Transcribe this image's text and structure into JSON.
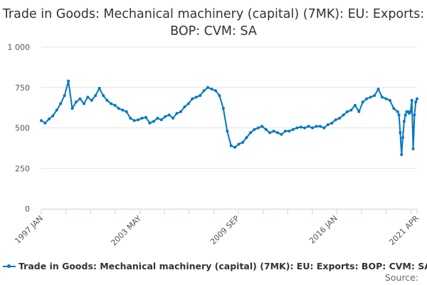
{
  "chart_data": {
    "type": "line",
    "title": "Trade in Goods: Mechanical machinery (capital) (7MK): EU: Exports: BOP: CVM: SA",
    "xlabel": "",
    "ylabel": "",
    "ylim": [
      0,
      1000
    ],
    "yticks": [
      0,
      250,
      500,
      750,
      1000
    ],
    "ytick_labels": [
      "0",
      "250",
      "500",
      "750",
      "1 000"
    ],
    "xtick_labels": [
      "1997 JAN",
      "2003 MAY",
      "2009 SEP",
      "2016 JAN",
      "2021 APR"
    ],
    "xtick_dates": [
      "1997-01",
      "2003-05",
      "2009-09",
      "2016-01",
      "2021-04"
    ],
    "grid": true,
    "legend_placement": "bottom",
    "color": "#0077c2",
    "series": [
      {
        "name": "Trade in Goods: Mechanical machinery (capital) (7MK): EU: Exports: BOP: CVM: SA",
        "x": [
          "1997-01",
          "1997-04",
          "1997-07",
          "1997-10",
          "1998-01",
          "1998-04",
          "1998-07",
          "1998-10",
          "1999-01",
          "1999-04",
          "1999-07",
          "1999-10",
          "2000-01",
          "2000-04",
          "2000-07",
          "2000-10",
          "2001-01",
          "2001-04",
          "2001-07",
          "2001-10",
          "2002-01",
          "2002-04",
          "2002-07",
          "2002-10",
          "2003-01",
          "2003-04",
          "2003-07",
          "2003-10",
          "2004-01",
          "2004-04",
          "2004-07",
          "2004-10",
          "2005-01",
          "2005-04",
          "2005-07",
          "2005-10",
          "2006-01",
          "2006-04",
          "2006-07",
          "2006-10",
          "2007-01",
          "2007-04",
          "2007-07",
          "2007-10",
          "2008-01",
          "2008-04",
          "2008-07",
          "2008-10",
          "2009-01",
          "2009-04",
          "2009-07",
          "2009-10",
          "2010-01",
          "2010-04",
          "2010-07",
          "2010-10",
          "2011-01",
          "2011-04",
          "2011-07",
          "2011-10",
          "2012-01",
          "2012-04",
          "2012-07",
          "2012-10",
          "2013-01",
          "2013-04",
          "2013-07",
          "2013-10",
          "2014-01",
          "2014-04",
          "2014-07",
          "2014-10",
          "2015-01",
          "2015-04",
          "2015-07",
          "2015-10",
          "2016-01",
          "2016-04",
          "2016-07",
          "2016-10",
          "2017-01",
          "2017-04",
          "2017-07",
          "2017-10",
          "2018-01",
          "2018-04",
          "2018-07",
          "2018-10",
          "2019-01",
          "2019-04",
          "2019-07",
          "2019-10",
          "2020-01",
          "2020-02",
          "2020-03",
          "2020-04",
          "2020-05",
          "2020-06",
          "2020-07",
          "2020-08",
          "2020-09",
          "2020-10",
          "2020-11",
          "2020-12",
          "2021-01",
          "2021-02",
          "2021-03",
          "2021-04"
        ],
        "values": [
          545,
          530,
          555,
          575,
          610,
          650,
          700,
          790,
          620,
          660,
          680,
          650,
          690,
          670,
          700,
          745,
          700,
          670,
          650,
          640,
          620,
          610,
          600,
          560,
          545,
          550,
          560,
          565,
          530,
          540,
          560,
          550,
          570,
          580,
          560,
          590,
          600,
          630,
          650,
          680,
          690,
          700,
          730,
          750,
          740,
          730,
          700,
          620,
          480,
          390,
          380,
          400,
          410,
          440,
          470,
          490,
          500,
          510,
          490,
          470,
          480,
          470,
          460,
          480,
          480,
          490,
          500,
          505,
          500,
          510,
          500,
          510,
          510,
          500,
          520,
          530,
          550,
          560,
          580,
          600,
          610,
          640,
          600,
          660,
          680,
          690,
          700,
          740,
          690,
          680,
          670,
          620,
          600,
          580,
          470,
          335,
          440,
          540,
          580,
          600,
          600,
          590,
          600,
          670,
          370,
          580,
          660,
          680
        ]
      }
    ]
  },
  "source_label": "Source:"
}
